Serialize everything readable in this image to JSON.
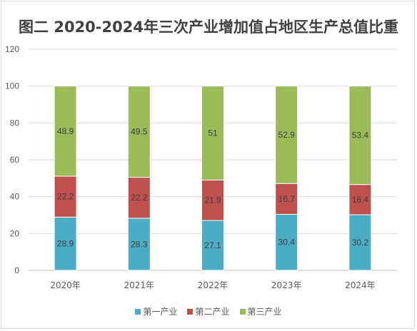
{
  "chart_data": {
    "type": "bar",
    "stacked": true,
    "title": "图二 2020-2024年三次产业增加值占地区生产总值比重",
    "categories": [
      "2020年",
      "2021年",
      "2022年",
      "2023年",
      "2024年"
    ],
    "series": [
      {
        "name": "第一产业",
        "color": "#4bacc6",
        "values": [
          28.9,
          28.3,
          27.1,
          30.4,
          30.2
        ]
      },
      {
        "name": "第二产业",
        "color": "#c0504d",
        "values": [
          22.2,
          22.2,
          21.9,
          16.7,
          16.4
        ]
      },
      {
        "name": "第三产业",
        "color": "#9bbb59",
        "values": [
          48.9,
          49.5,
          51,
          52.9,
          53.4
        ]
      }
    ],
    "ylim": [
      0,
      120
    ],
    "yticks": [
      0,
      20,
      40,
      60,
      80,
      100,
      120
    ],
    "grid": true,
    "legend": "bottom"
  }
}
